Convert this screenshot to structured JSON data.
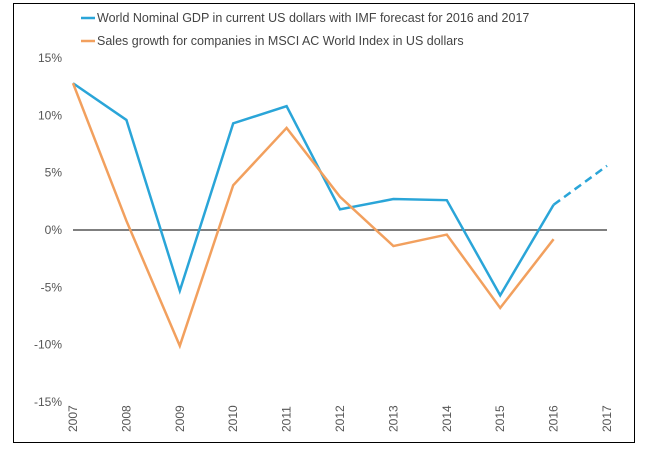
{
  "chart_data": {
    "type": "line",
    "title": "",
    "xlabel": "",
    "ylabel": "",
    "x": [
      "2007",
      "2008",
      "2009",
      "2010",
      "2011",
      "2012",
      "2013",
      "2014",
      "2015",
      "2016",
      "2017"
    ],
    "ylim": [
      -15,
      15
    ],
    "yticks": [
      15,
      10,
      5,
      0,
      -5,
      -10,
      -15
    ],
    "ytick_labels": [
      "15%",
      "10%",
      "5%",
      "0%",
      "-5%",
      "-10%",
      "-15%"
    ],
    "grid": false,
    "zero_line": true,
    "legend_position": "top",
    "series": [
      {
        "name": "World Nominal GDP in current US dollars with IMF forecast for 2016 and 2017",
        "color": "#2aa5d8",
        "values": [
          12.8,
          9.6,
          -5.3,
          9.3,
          10.8,
          1.8,
          2.7,
          2.6,
          -5.7,
          2.2,
          5.6
        ],
        "forecast_from_index": 9,
        "forecast_style": "dashed"
      },
      {
        "name": "Sales growth for companies in MSCI AC World Index in US dollars",
        "color": "#f2a05e",
        "values": [
          12.8,
          0.8,
          -10.1,
          3.9,
          8.9,
          2.9,
          -1.4,
          -0.4,
          -6.8,
          -0.8,
          null
        ]
      }
    ]
  }
}
